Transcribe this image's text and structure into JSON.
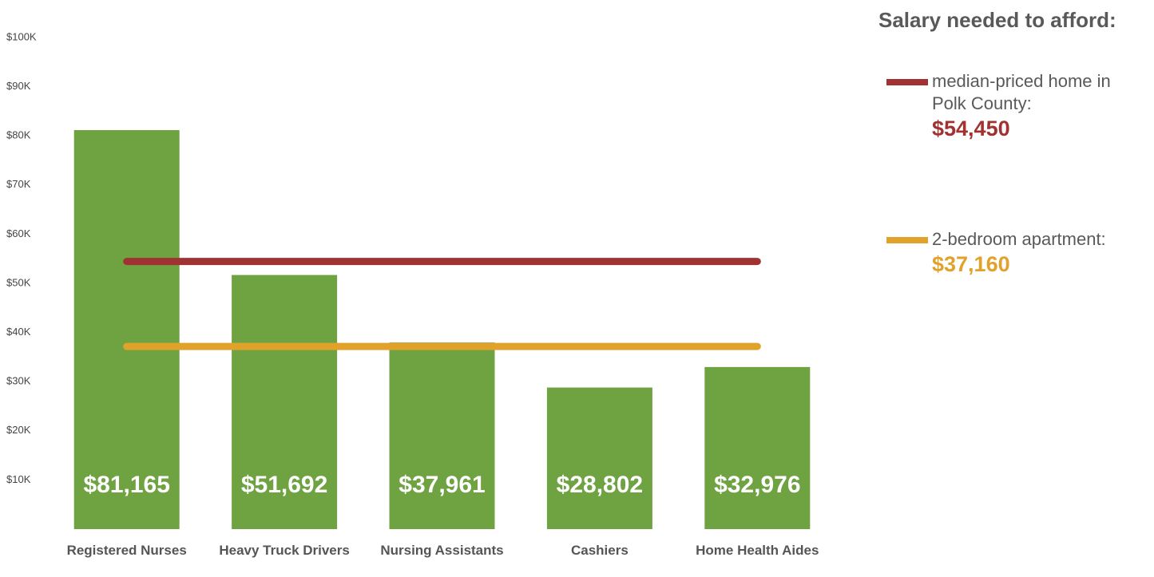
{
  "chart_data": {
    "type": "bar",
    "categories": [
      "Registered Nurses",
      "Heavy Truck Drivers",
      "Nursing Assistants",
      "Cashiers",
      "Home Health Aides"
    ],
    "values": [
      81165,
      51692,
      37961,
      28802,
      32976
    ],
    "value_labels": [
      "$81,165",
      "$51,692",
      "$37,961",
      "$28,802",
      "$32,976"
    ],
    "color": "#6fa342",
    "ylim": [
      0,
      100000
    ],
    "yticks": [
      {
        "value": 10000,
        "label": "$10K"
      },
      {
        "value": 20000,
        "label": "$20K"
      },
      {
        "value": 30000,
        "label": "$30K"
      },
      {
        "value": 40000,
        "label": "$40K"
      },
      {
        "value": 50000,
        "label": "$50K"
      },
      {
        "value": 60000,
        "label": "$60K"
      },
      {
        "value": 70000,
        "label": "$70K"
      },
      {
        "value": 80000,
        "label": "$80K"
      },
      {
        "value": 90000,
        "label": "$90K"
      },
      {
        "value": 100000,
        "label": "$100K"
      }
    ],
    "grid": false,
    "legend_title": "Salary needed to afford:",
    "reference_lines": [
      {
        "name": "median-priced home in Polk County:",
        "value": 54450,
        "value_label": "$54,450",
        "color": "#a03331"
      },
      {
        "name": "2-bedroom apartment:",
        "value": 37160,
        "value_label": "$37,160",
        "color": "#e1a22b"
      }
    ]
  }
}
